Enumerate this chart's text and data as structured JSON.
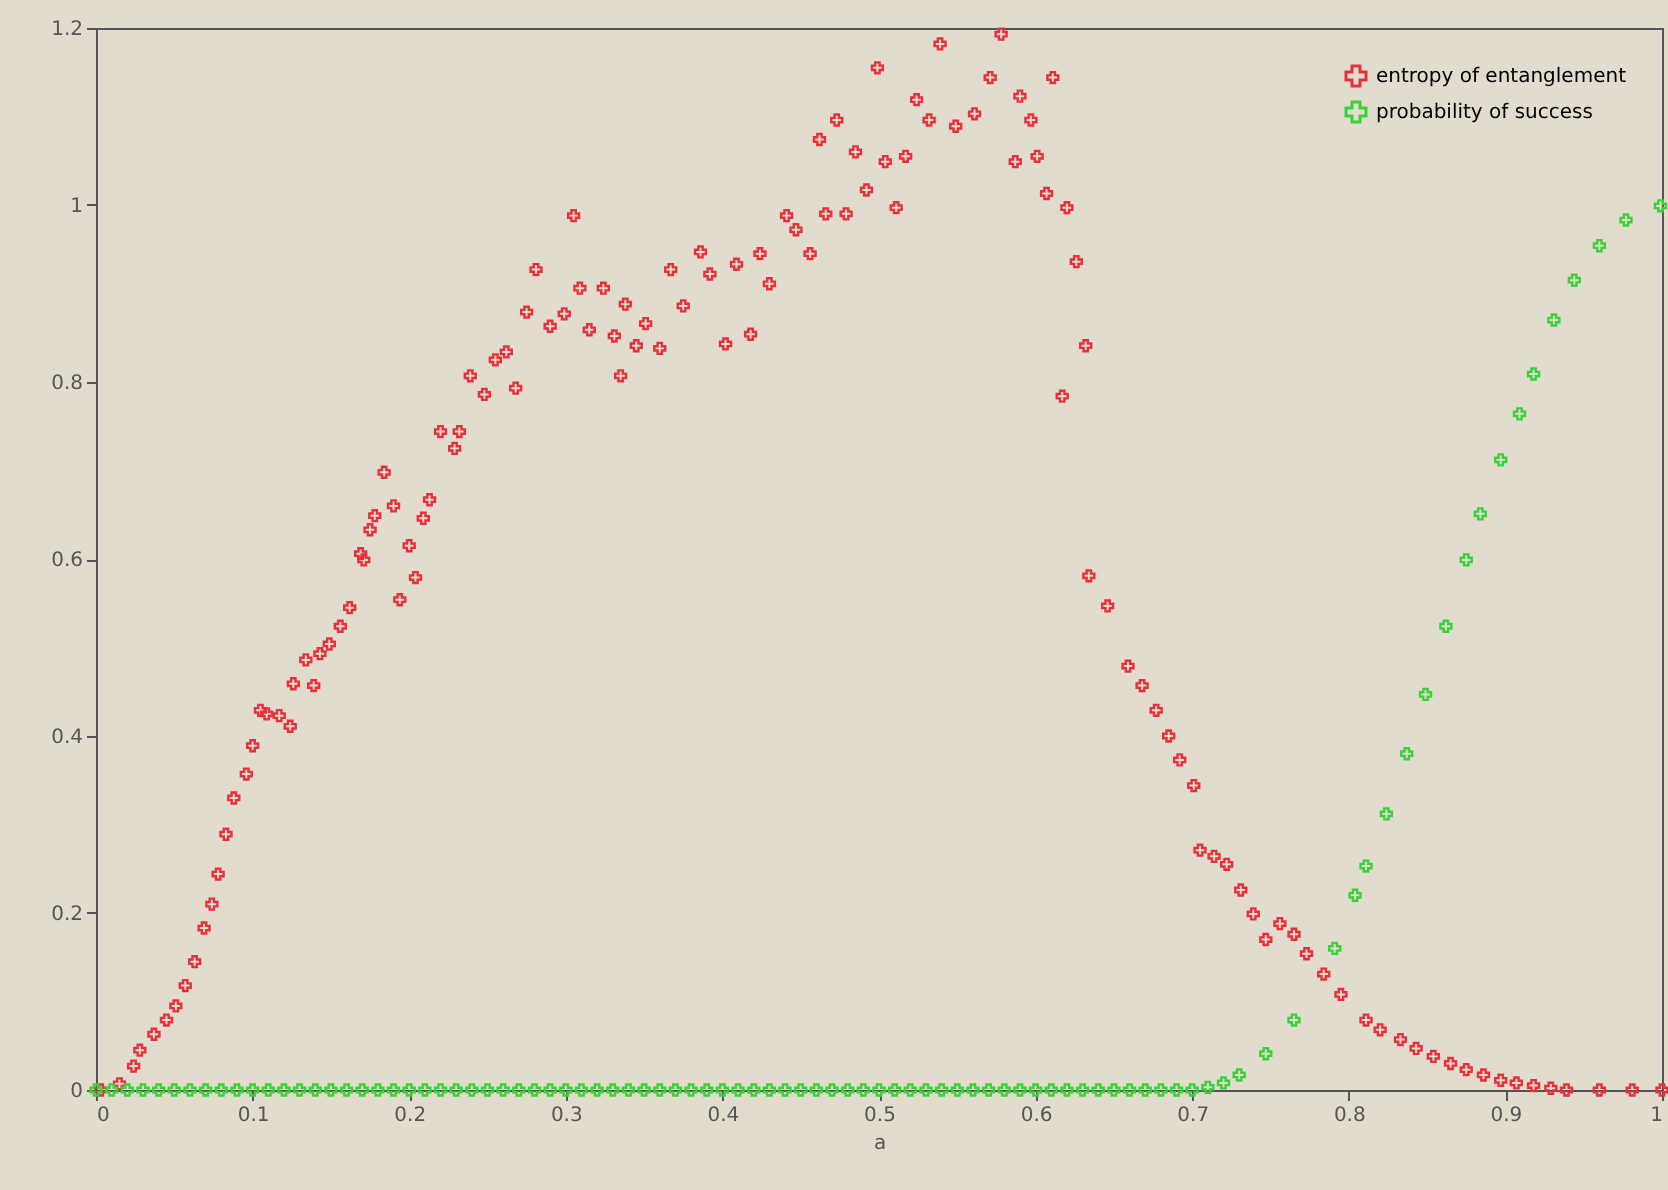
{
  "chart_data": {
    "type": "scatter",
    "xlabel": "a",
    "xlim": [
      0,
      1
    ],
    "ylim": [
      0,
      1.2
    ],
    "xticks": [
      0,
      0.1,
      0.2,
      0.3,
      0.4,
      0.5,
      0.6,
      0.7,
      0.8,
      0.9,
      1
    ],
    "yticks": [
      0,
      0.2,
      0.4,
      0.6,
      0.8,
      1,
      1.2
    ],
    "grid": false,
    "legend": "top right",
    "marker": "cross",
    "series": [
      {
        "name": "entropy of entanglement",
        "color": "#e8303c",
        "x": [
          0.003,
          0.015,
          0.024,
          0.028,
          0.037,
          0.045,
          0.051,
          0.057,
          0.063,
          0.069,
          0.074,
          0.078,
          0.083,
          0.088,
          0.096,
          0.1,
          0.105,
          0.109,
          0.117,
          0.124,
          0.126,
          0.134,
          0.139,
          0.143,
          0.149,
          0.156,
          0.162,
          0.169,
          0.171,
          0.175,
          0.178,
          0.184,
          0.19,
          0.194,
          0.2,
          0.204,
          0.209,
          0.213,
          0.22,
          0.229,
          0.232,
          0.239,
          0.248,
          0.255,
          0.262,
          0.268,
          0.275,
          0.281,
          0.29,
          0.299,
          0.305,
          0.309,
          0.315,
          0.324,
          0.331,
          0.335,
          0.338,
          0.345,
          0.351,
          0.36,
          0.367,
          0.375,
          0.386,
          0.392,
          0.402,
          0.409,
          0.418,
          0.424,
          0.43,
          0.441,
          0.447,
          0.456,
          0.462,
          0.466,
          0.473,
          0.479,
          0.485,
          0.492,
          0.499,
          0.504,
          0.511,
          0.517,
          0.524,
          0.532,
          0.539,
          0.549,
          0.561,
          0.571,
          0.578,
          0.587,
          0.59,
          0.597,
          0.601,
          0.607,
          0.611,
          0.617,
          0.62,
          0.626,
          0.632,
          0.634,
          0.646,
          0.659,
          0.668,
          0.677,
          0.685,
          0.692,
          0.701,
          0.705,
          0.714,
          0.722,
          0.731,
          0.739,
          0.747,
          0.756,
          0.765,
          0.773,
          0.784,
          0.795,
          0.811,
          0.82,
          0.833,
          0.843,
          0.854,
          0.865,
          0.875,
          0.886,
          0.897,
          0.907,
          0.918,
          0.929,
          0.939,
          0.96,
          0.981,
          1
        ],
        "values": [
          0,
          0.007,
          0.027,
          0.045,
          0.063,
          0.079,
          0.095,
          0.118,
          0.145,
          0.183,
          0.21,
          0.244,
          0.289,
          0.33,
          0.357,
          0.389,
          0.429,
          0.425,
          0.423,
          0.411,
          0.459,
          0.486,
          0.457,
          0.493,
          0.504,
          0.524,
          0.545,
          0.606,
          0.599,
          0.633,
          0.649,
          0.698,
          0.66,
          0.554,
          0.615,
          0.579,
          0.646,
          0.667,
          0.744,
          0.725,
          0.744,
          0.807,
          0.786,
          0.825,
          0.834,
          0.793,
          0.879,
          0.927,
          0.863,
          0.877,
          0.988,
          0.906,
          0.859,
          0.906,
          0.852,
          0.807,
          0.888,
          0.841,
          0.866,
          0.838,
          0.927,
          0.886,
          0.947,
          0.922,
          0.843,
          0.933,
          0.854,
          0.945,
          0.911,
          0.988,
          0.972,
          0.945,
          1.074,
          0.99,
          1.096,
          0.99,
          1.06,
          1.017,
          1.155,
          1.049,
          0.997,
          1.055,
          1.119,
          1.096,
          1.182,
          1.089,
          1.103,
          1.144,
          1.193,
          1.049,
          1.123,
          1.096,
          1.055,
          1.013,
          1.144,
          0.784,
          0.997,
          0.936,
          0.841,
          0.581,
          0.547,
          0.479,
          0.457,
          0.429,
          0.4,
          0.373,
          0.344,
          0.271,
          0.264,
          0.255,
          0.226,
          0.199,
          0.17,
          0.188,
          0.176,
          0.154,
          0.131,
          0.108,
          0.079,
          0.068,
          0.057,
          0.047,
          0.038,
          0.03,
          0.023,
          0.017,
          0.011,
          0.008,
          0.005,
          0.002,
          0,
          0,
          0,
          0
        ]
      },
      {
        "name": "probability of success",
        "color": "#3ad23a",
        "x": [
          0,
          0.01,
          0.02,
          0.03,
          0.04,
          0.05,
          0.06,
          0.07,
          0.08,
          0.09,
          0.1,
          0.11,
          0.12,
          0.13,
          0.14,
          0.15,
          0.16,
          0.17,
          0.18,
          0.19,
          0.2,
          0.21,
          0.22,
          0.23,
          0.24,
          0.25,
          0.26,
          0.27,
          0.28,
          0.29,
          0.3,
          0.31,
          0.32,
          0.33,
          0.34,
          0.35,
          0.36,
          0.37,
          0.38,
          0.39,
          0.4,
          0.41,
          0.42,
          0.43,
          0.44,
          0.45,
          0.46,
          0.47,
          0.48,
          0.49,
          0.5,
          0.51,
          0.52,
          0.53,
          0.54,
          0.55,
          0.56,
          0.57,
          0.58,
          0.59,
          0.6,
          0.61,
          0.62,
          0.63,
          0.64,
          0.65,
          0.66,
          0.67,
          0.68,
          0.69,
          0.7,
          0.71,
          0.72,
          0.73,
          0.747,
          0.765,
          0.791,
          0.804,
          0.811,
          0.824,
          0.837,
          0.849,
          0.862,
          0.875,
          0.884,
          0.897,
          0.909,
          0.918,
          0.931,
          0.944,
          0.96,
          0.977,
          0.999
        ],
        "values": [
          0,
          0,
          0,
          0,
          0,
          0,
          0,
          0,
          0,
          0,
          0,
          0,
          0,
          0,
          0,
          0,
          0,
          0,
          0,
          0,
          0,
          0,
          0,
          0,
          0,
          0,
          0,
          0,
          0,
          0,
          0,
          0,
          0,
          0,
          0,
          0,
          0,
          0,
          0,
          0,
          0,
          0,
          0,
          0,
          0,
          0,
          0,
          0,
          0,
          0,
          0,
          0,
          0,
          0,
          0,
          0,
          0,
          0,
          0,
          0,
          0,
          0,
          0,
          0,
          0,
          0,
          0,
          0,
          0,
          0,
          0,
          0.003,
          0.008,
          0.017,
          0.041,
          0.079,
          0.16,
          0.22,
          0.253,
          0.312,
          0.38,
          0.447,
          0.524,
          0.599,
          0.651,
          0.712,
          0.764,
          0.809,
          0.87,
          0.915,
          0.954,
          0.983,
          0.999
        ]
      }
    ]
  }
}
